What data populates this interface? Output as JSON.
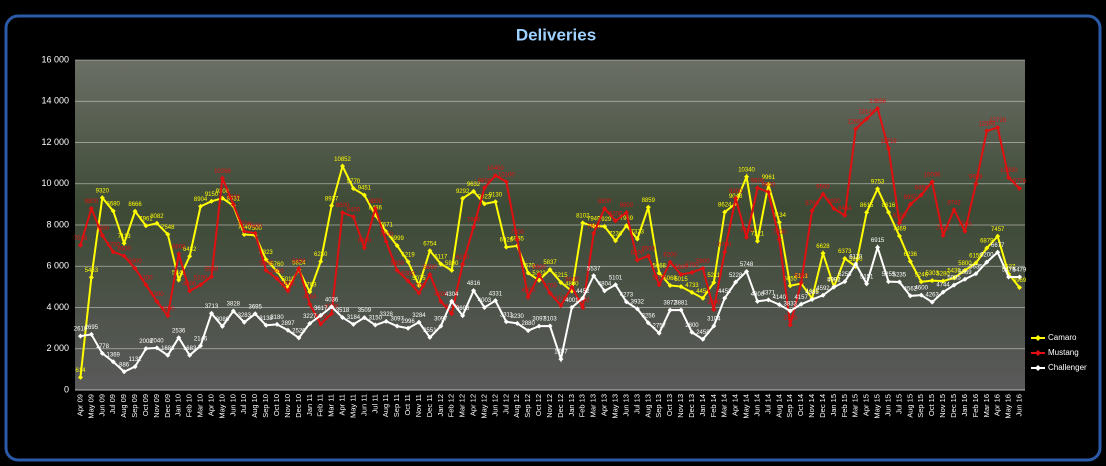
{
  "chart_data": {
    "type": "line",
    "title": "Deliveries",
    "categories": [
      "Apr 09",
      "May 09",
      "Jun 09",
      "Jul 09",
      "Aug 09",
      "Sep 09",
      "Oct 09",
      "Nov 09",
      "Dec 09",
      "Jan 10",
      "Feb 10",
      "Mar 10",
      "Apr 10",
      "May 10",
      "Jun 10",
      "Jul 10",
      "Aug 10",
      "Sep 10",
      "Oct 10",
      "Nov 10",
      "Dec 10",
      "Jan 11",
      "Feb 11",
      "Mar 11",
      "Apr 11",
      "May 11",
      "Jun 11",
      "Jul 11",
      "Aug 11",
      "Sep 11",
      "Oct 11",
      "Nov 11",
      "Dec 11",
      "Jan 12",
      "Feb 12",
      "Mar 12",
      "Apr 12",
      "May 12",
      "Jun 12",
      "Jul 12",
      "Aug 12",
      "Sep 12",
      "Oct 12",
      "Nov 12",
      "Dec 12",
      "Jan 13",
      "Feb 13",
      "Mar 13",
      "Apr 13",
      "May 13",
      "Jun 13",
      "Jul 13",
      "Aug 13",
      "Sep 13",
      "Oct 13",
      "Nov 13",
      "Dec 13",
      "Jan 14",
      "Feb 14",
      "Mar 14",
      "Apr 14",
      "May 14",
      "Jun 14",
      "Jul 14",
      "Aug 14",
      "Sep 14",
      "Oct 14",
      "Nov 14",
      "Dec 14",
      "Jan 15",
      "Feb 15",
      "Mar 15",
      "Apr 15",
      "May 15",
      "Jun 15",
      "Jul 15",
      "Aug 15",
      "Sep 15",
      "Oct 15",
      "Nov 15",
      "Dec 15",
      "Jan 16",
      "Feb 16",
      "Mar 16",
      "Apr 16",
      "May 16",
      "Jun 16"
    ],
    "series": [
      {
        "name": "Camaro",
        "color": "#ffff00",
        "values": [
          614,
          5463,
          9320,
          8680,
          7113,
          8666,
          7961,
          8082,
          7548,
          5341,
          6482,
          8904,
          9150,
          9300,
          8931,
          7540,
          7500,
          6323,
          5760,
          5011,
          5824,
          4763,
          6230,
          8937,
          10852,
          9770,
          9451,
          8486,
          7671,
          6999,
          6219,
          5075,
          6754,
          6117,
          5800,
          9292,
          9632,
          9023,
          9130,
          6926,
          6985,
          5670,
          5322,
          5837,
          5215,
          4800,
          8102,
          7949,
          7929,
          7236,
          7969,
          7323,
          8859,
          5668,
          5068,
          5015,
          4733,
          4451,
          5211,
          8624,
          9048,
          10340,
          7221,
          9961,
          8134,
          5055,
          5161,
          4446,
          6628,
          5002,
          6373,
          5990,
          8615,
          9753,
          8616,
          7469,
          6236,
          5246,
          5303,
          5280,
          5435,
          5800,
          6159,
          6879,
          7457,
          5627,
          4969
        ]
      },
      {
        "name": "Mustang",
        "color": "#e01010",
        "values": [
          7016,
          8800,
          7500,
          6700,
          6500,
          5900,
          5100,
          4300,
          3600,
          6600,
          4800,
          5100,
          5500,
          10268,
          9000,
          7700,
          7600,
          5800,
          5400,
          4800,
          5900,
          4164,
          3200,
          3700,
          8600,
          8400,
          6900,
          8800,
          7200,
          5800,
          5300,
          4700,
          5600,
          4300,
          3700,
          6100,
          7900,
          9800,
          10400,
          10100,
          7300,
          4500,
          5600,
          4700,
          4100,
          5000,
          4000,
          7600,
          8800,
          8200,
          8600,
          6300,
          6500,
          5100,
          6200,
          5600,
          5700,
          5900,
          3900,
          6700,
          9300,
          7400,
          9800,
          9600,
          7300,
          3150,
          5200,
          8700,
          9500,
          8800,
          8464,
          12663,
          13144,
          13656,
          11719,
          8100,
          8997,
          9456,
          10096,
          7500,
          8742,
          7700,
          9988,
          12563,
          12728,
          10300,
          9776
        ]
      },
      {
        "name": "Challenger",
        "color": "#ffffff",
        "values": [
          2610,
          2695,
          1778,
          1369,
          886,
          1132,
          2008,
          2040,
          1683,
          2536,
          1683,
          2146,
          3713,
          3086,
          3828,
          3283,
          3695,
          3138,
          3180,
          2897,
          2526,
          3227,
          3617,
          4036,
          3518,
          3184,
          3509,
          3150,
          3328,
          3097,
          2996,
          3284,
          2551,
          3097,
          4304,
          3608,
          4816,
          4003,
          4331,
          3311,
          3230,
          2880,
          3097,
          3103,
          1497,
          4001,
          4452,
          5537,
          4804,
          5101,
          4273,
          3932,
          3256,
          2757,
          3872,
          3881,
          2800,
          2458,
          3104,
          4452,
          5228,
          5748,
          4300,
          4371,
          4140,
          3833,
          4157,
          4385,
          4592,
          4991,
          5255,
          6110,
          5151,
          6915,
          5255,
          5235,
          4562,
          4600,
          4263,
          4744,
          5085,
          5369,
          5635,
          6200,
          6677,
          5479,
          5479
        ]
      }
    ],
    "ylim": [
      0,
      16000
    ],
    "yticks": [
      0,
      {
        "value": 2000,
        "label": "2 000"
      },
      {
        "value": 4000,
        "label": "4 000"
      },
      {
        "value": 6000,
        "label": "6 000"
      },
      {
        "value": 8000,
        "label": "8 000"
      },
      {
        "value": 10000,
        "label": "10 000"
      },
      {
        "value": 12000,
        "label": "12 000"
      },
      {
        "value": 14000,
        "label": "14 000"
      },
      {
        "value": 16000,
        "label": "16 000"
      }
    ],
    "grid": true,
    "legend": "right"
  }
}
